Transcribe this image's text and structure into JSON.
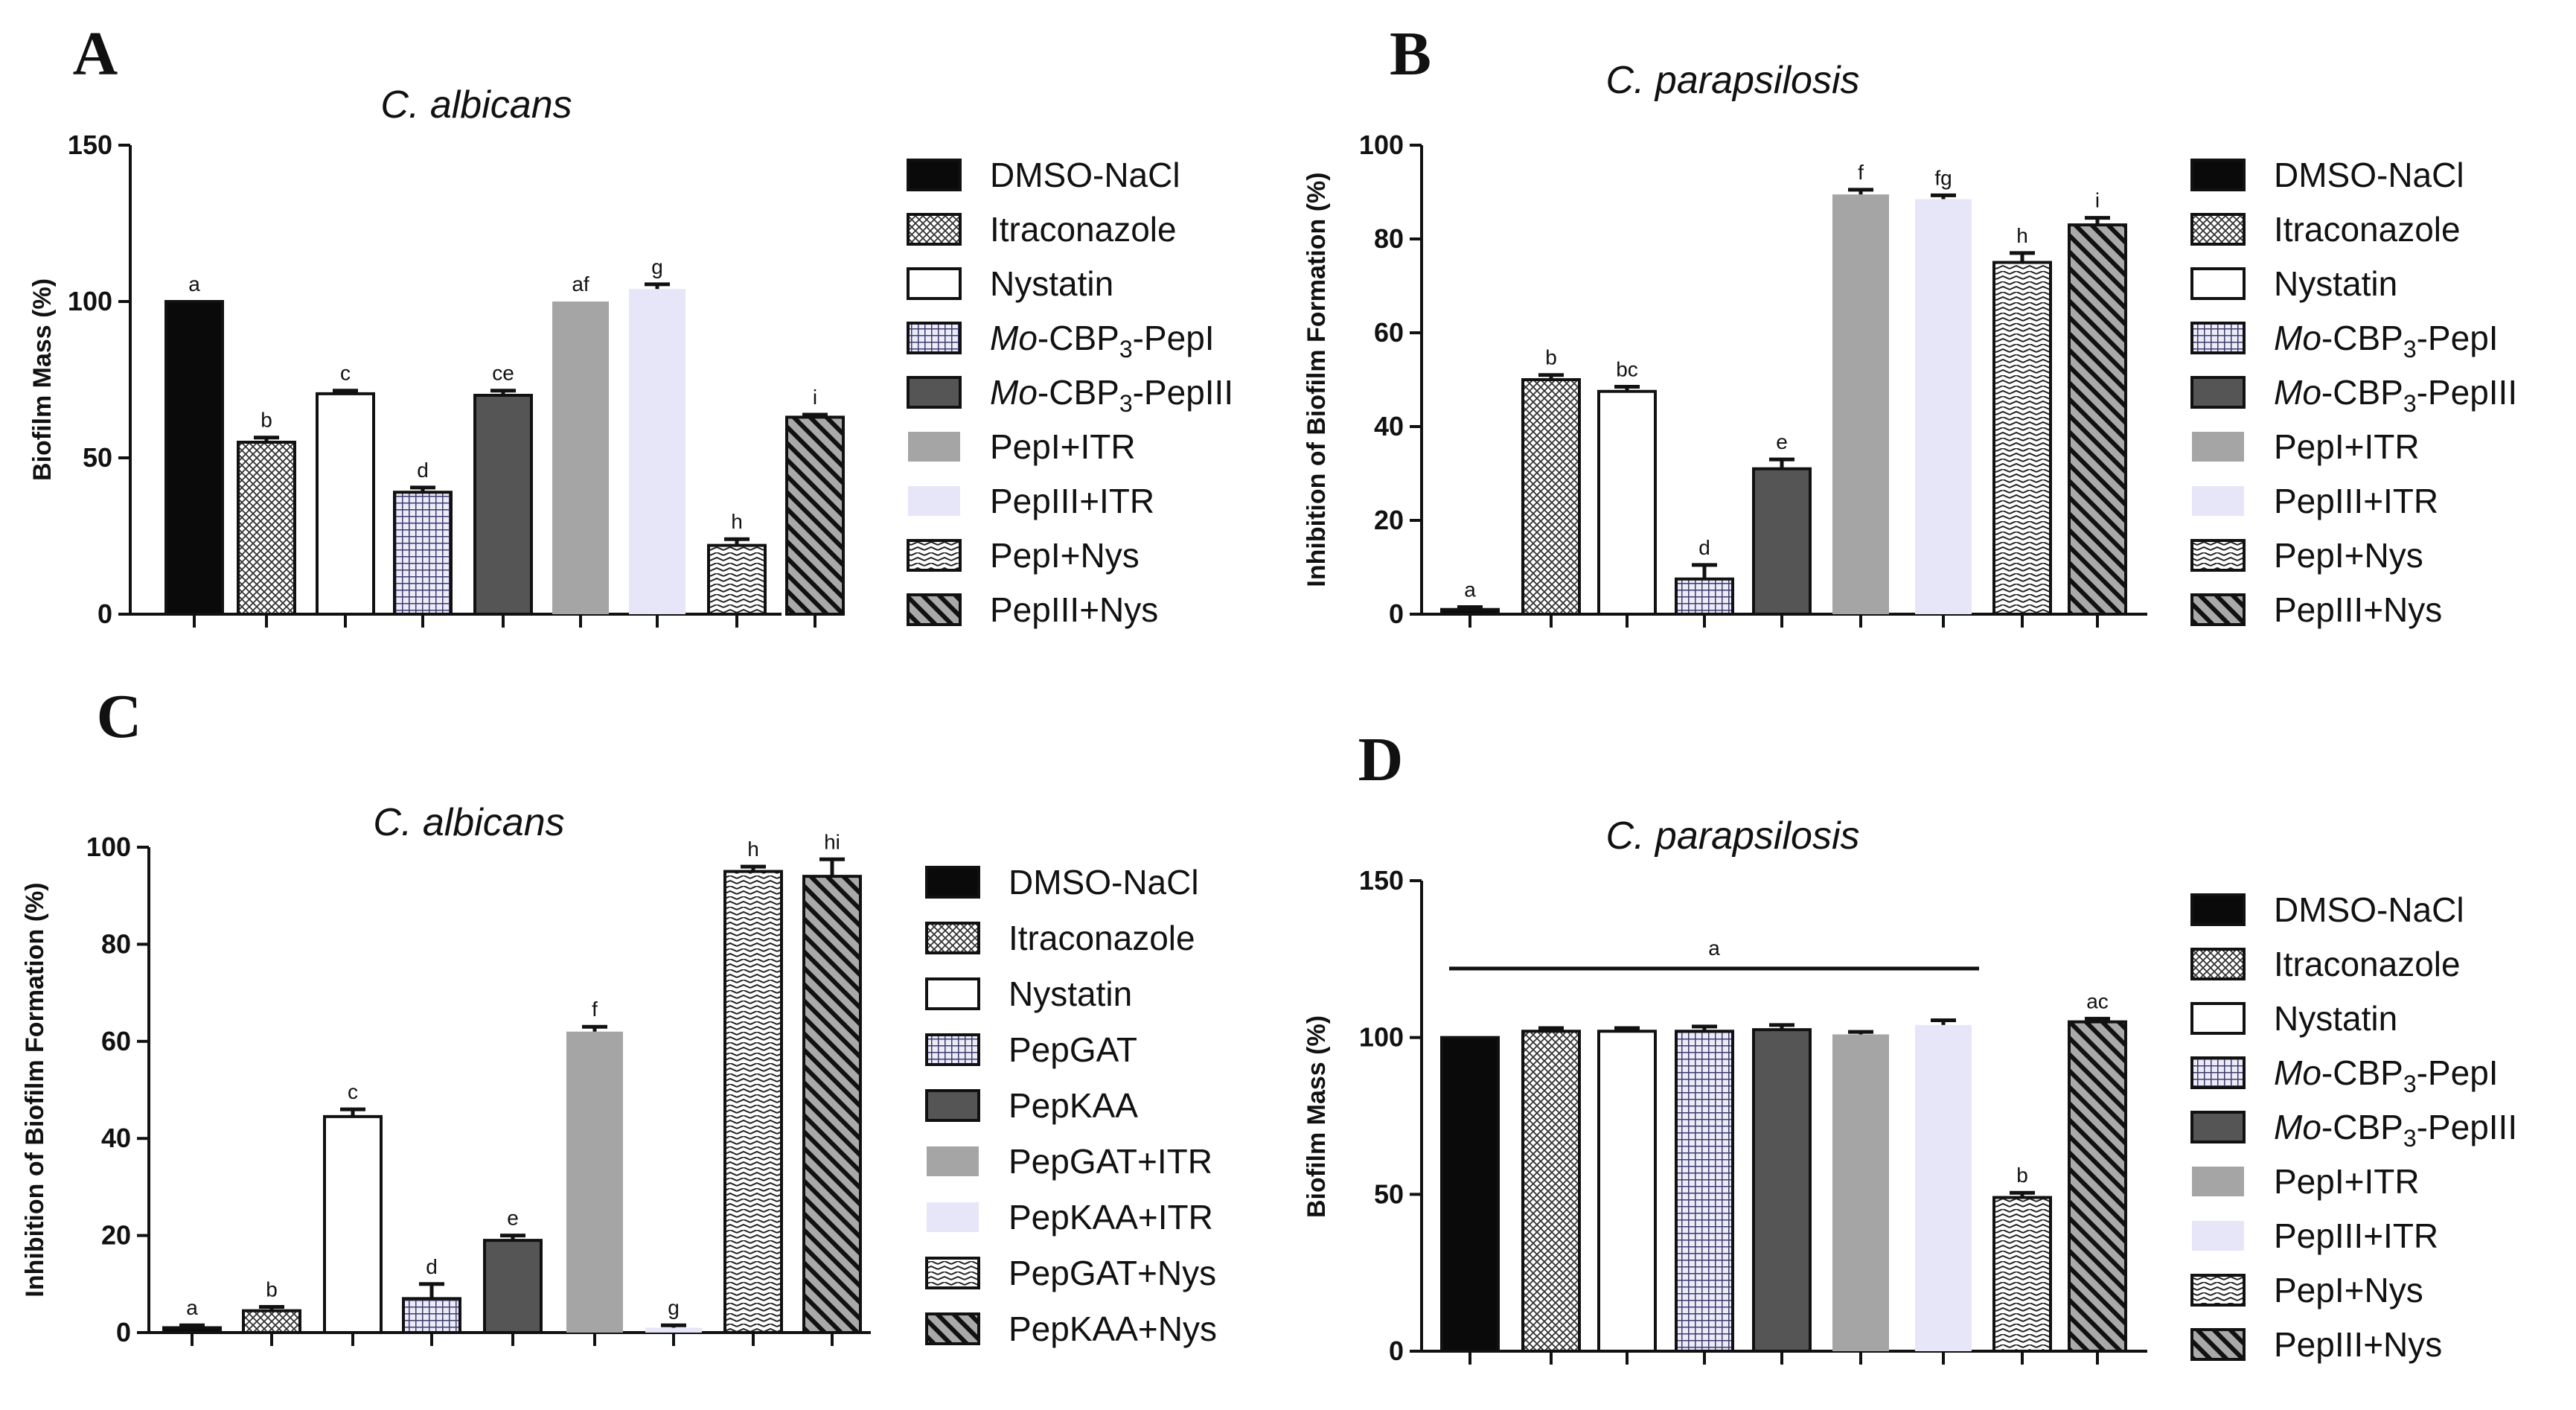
{
  "colors": {
    "axis": "#111111",
    "dark": "#0a0a0a",
    "darkgray": "#555555",
    "gray": "#a5a5a5",
    "lavender": "#e6e6f8",
    "white": "#ffffff"
  },
  "chart_data": [
    {
      "panel": "A",
      "type": "bar",
      "title": "C. albicans",
      "xlabel": "",
      "ylabel": "Biofilm Mass (%)",
      "ylim": [
        0,
        150
      ],
      "yticks": [
        "0",
        "50",
        "100",
        "150"
      ],
      "series": [
        {
          "name": "DMSO-NaCl",
          "pattern": "black",
          "value": 100,
          "error": 0,
          "label": "a"
        },
        {
          "name": "Itraconazole",
          "pattern": "checker",
          "value": 55,
          "error": 1.5,
          "label": "b"
        },
        {
          "name": "Nystatin",
          "pattern": "white",
          "value": 70.5,
          "error": 1,
          "label": "c"
        },
        {
          "name": "Mo-CBP3-PepI",
          "pattern": "grid",
          "value": 39,
          "error": 1.5,
          "label": "d"
        },
        {
          "name": "Mo-CBP3-PepIII",
          "pattern": "darkgray",
          "value": 70,
          "error": 1.5,
          "label": "ce"
        },
        {
          "name": "PepI+ITR",
          "pattern": "gray",
          "value": 100,
          "error": 0,
          "label": "af"
        },
        {
          "name": "PepIII+ITR",
          "pattern": "lavender",
          "value": 104,
          "error": 1.5,
          "label": "g"
        },
        {
          "name": "PepI+Nys",
          "pattern": "zigzag",
          "value": 22,
          "error": 2,
          "label": "h"
        },
        {
          "name": "PepIII+Nys",
          "pattern": "diag",
          "value": 63,
          "error": 0.8,
          "label": "i"
        }
      ],
      "legend": [
        {
          "text": "DMSO-NaCl"
        },
        {
          "text": "Itraconazole"
        },
        {
          "text": "Nystatin"
        },
        {
          "pre": "Mo",
          "text": "-CBP",
          "sub": "3",
          "post": "-PepI"
        },
        {
          "pre": "Mo",
          "text": "-CBP",
          "sub": "3",
          "post": "-PepIII"
        },
        {
          "text": "PepI+ITR"
        },
        {
          "text": "PepIII+ITR"
        },
        {
          "text": "PepI+Nys"
        },
        {
          "text": "PepIII+Nys"
        }
      ]
    },
    {
      "panel": "B",
      "type": "bar",
      "title": "C. parapsilosis",
      "xlabel": "",
      "ylabel": "Inhibition of Biofilm Formation (%)",
      "ylim": [
        0,
        100
      ],
      "yticks": [
        "0",
        "20",
        "40",
        "60",
        "80",
        "100"
      ],
      "series": [
        {
          "name": "DMSO-NaCl",
          "pattern": "black",
          "value": 1,
          "error": 0.5,
          "label": "a"
        },
        {
          "name": "Itraconazole",
          "pattern": "checker",
          "value": 50,
          "error": 1,
          "label": "b"
        },
        {
          "name": "Nystatin",
          "pattern": "white",
          "value": 47.5,
          "error": 1,
          "label": "bc"
        },
        {
          "name": "Mo-CBP3-PepI",
          "pattern": "grid",
          "value": 7.5,
          "error": 3,
          "label": "d"
        },
        {
          "name": "Mo-CBP3-PepIII",
          "pattern": "darkgray",
          "value": 31,
          "error": 2,
          "label": "e"
        },
        {
          "name": "PepI+ITR",
          "pattern": "gray",
          "value": 89.5,
          "error": 1,
          "label": "f"
        },
        {
          "name": "PepIII+ITR",
          "pattern": "lavender",
          "value": 88.5,
          "error": 0.8,
          "label": "fg"
        },
        {
          "name": "PepI+Nys",
          "pattern": "zigzag",
          "value": 75,
          "error": 2,
          "label": "h"
        },
        {
          "name": "PepIII+Nys",
          "pattern": "diag",
          "value": 83,
          "error": 1.5,
          "label": "i"
        }
      ],
      "legend": [
        {
          "text": "DMSO-NaCl"
        },
        {
          "text": "Itraconazole"
        },
        {
          "text": "Nystatin"
        },
        {
          "pre": "Mo",
          "text": "-CBP",
          "sub": "3",
          "post": "-PepI"
        },
        {
          "pre": "Mo",
          "text": "-CBP",
          "sub": "3",
          "post": "-PepIII"
        },
        {
          "text": "PepI+ITR"
        },
        {
          "text": "PepIII+ITR"
        },
        {
          "text": "PepI+Nys"
        },
        {
          "text": "PepIII+Nys"
        }
      ]
    },
    {
      "panel": "C",
      "type": "bar",
      "title": "C. albicans",
      "xlabel": "",
      "ylabel": "Inhibition of Biofilm Formation (%)",
      "ylim": [
        0,
        100
      ],
      "yticks": [
        "0",
        "20",
        "40",
        "60",
        "80",
        "100"
      ],
      "series": [
        {
          "name": "DMSO-NaCl",
          "pattern": "black",
          "value": 1,
          "error": 0.5,
          "label": "a"
        },
        {
          "name": "Itraconazole",
          "pattern": "checker",
          "value": 4.5,
          "error": 0.8,
          "label": "b"
        },
        {
          "name": "Nystatin",
          "pattern": "white",
          "value": 44.5,
          "error": 1.5,
          "label": "c"
        },
        {
          "name": "PepGAT",
          "pattern": "grid",
          "value": 7,
          "error": 3,
          "label": "d"
        },
        {
          "name": "PepKAA",
          "pattern": "darkgray",
          "value": 19,
          "error": 1,
          "label": "e"
        },
        {
          "name": "PepGAT+ITR",
          "pattern": "gray",
          "value": 62,
          "error": 1,
          "label": "f"
        },
        {
          "name": "PepKAA+ITR",
          "pattern": "lavender",
          "value": 1,
          "error": 0.5,
          "label": "g"
        },
        {
          "name": "PepGAT+Nys",
          "pattern": "zigzag",
          "value": 95,
          "error": 1,
          "label": "h"
        },
        {
          "name": "PepKAA+Nys",
          "pattern": "diag",
          "value": 94,
          "error": 3.5,
          "label": "hi"
        }
      ],
      "legend": [
        {
          "text": "DMSO-NaCl"
        },
        {
          "text": "Itraconazole"
        },
        {
          "text": "Nystatin"
        },
        {
          "text": "PepGAT"
        },
        {
          "text": "PepKAA"
        },
        {
          "text": "PepGAT+ITR"
        },
        {
          "text": "PepKAA+ITR"
        },
        {
          "text": "PepGAT+Nys"
        },
        {
          "text": "PepKAA+Nys"
        }
      ]
    },
    {
      "panel": "D",
      "type": "bar",
      "title": "C. parapsilosis",
      "xlabel": "",
      "ylabel": "Biofilm Mass (%)",
      "ylim": [
        0,
        150
      ],
      "yticks": [
        "0",
        "50",
        "100",
        "150"
      ],
      "series": [
        {
          "name": "DMSO-NaCl",
          "pattern": "black",
          "value": 100,
          "error": 0,
          "label": ""
        },
        {
          "name": "Itraconazole",
          "pattern": "checker",
          "value": 102,
          "error": 1,
          "label": ""
        },
        {
          "name": "Nystatin",
          "pattern": "white",
          "value": 102,
          "error": 1,
          "label": ""
        },
        {
          "name": "Mo-CBP3-PepI",
          "pattern": "grid",
          "value": 102,
          "error": 1.5,
          "label": ""
        },
        {
          "name": "Mo-CBP3-PepIII",
          "pattern": "darkgray",
          "value": 102.5,
          "error": 1.5,
          "label": ""
        },
        {
          "name": "PepI+ITR",
          "pattern": "gray",
          "value": 101,
          "error": 0.8,
          "label": ""
        },
        {
          "name": "PepIII+ITR",
          "pattern": "lavender",
          "value": 104,
          "error": 1.5,
          "label": ""
        },
        {
          "name": "PepI+Nys",
          "pattern": "zigzag",
          "value": 49,
          "error": 1.5,
          "label": "b"
        },
        {
          "name": "PepIII+Nys",
          "pattern": "diag",
          "value": 105,
          "error": 1,
          "label": "ac"
        }
      ],
      "group_annotation": {
        "label": "a",
        "from_bar": 0,
        "to_bar": 6,
        "y": 122
      },
      "legend": [
        {
          "text": "DMSO-NaCl"
        },
        {
          "text": "Itraconazole"
        },
        {
          "text": "Nystatin"
        },
        {
          "pre": "Mo",
          "text": "-CBP",
          "sub": "3",
          "post": "-PepI"
        },
        {
          "pre": "Mo",
          "text": "-CBP",
          "sub": "3",
          "post": "-PepIII"
        },
        {
          "text": "PepI+ITR"
        },
        {
          "text": "PepIII+ITR"
        },
        {
          "text": "PepI+Nys"
        },
        {
          "text": "PepIII+Nys"
        }
      ]
    }
  ]
}
